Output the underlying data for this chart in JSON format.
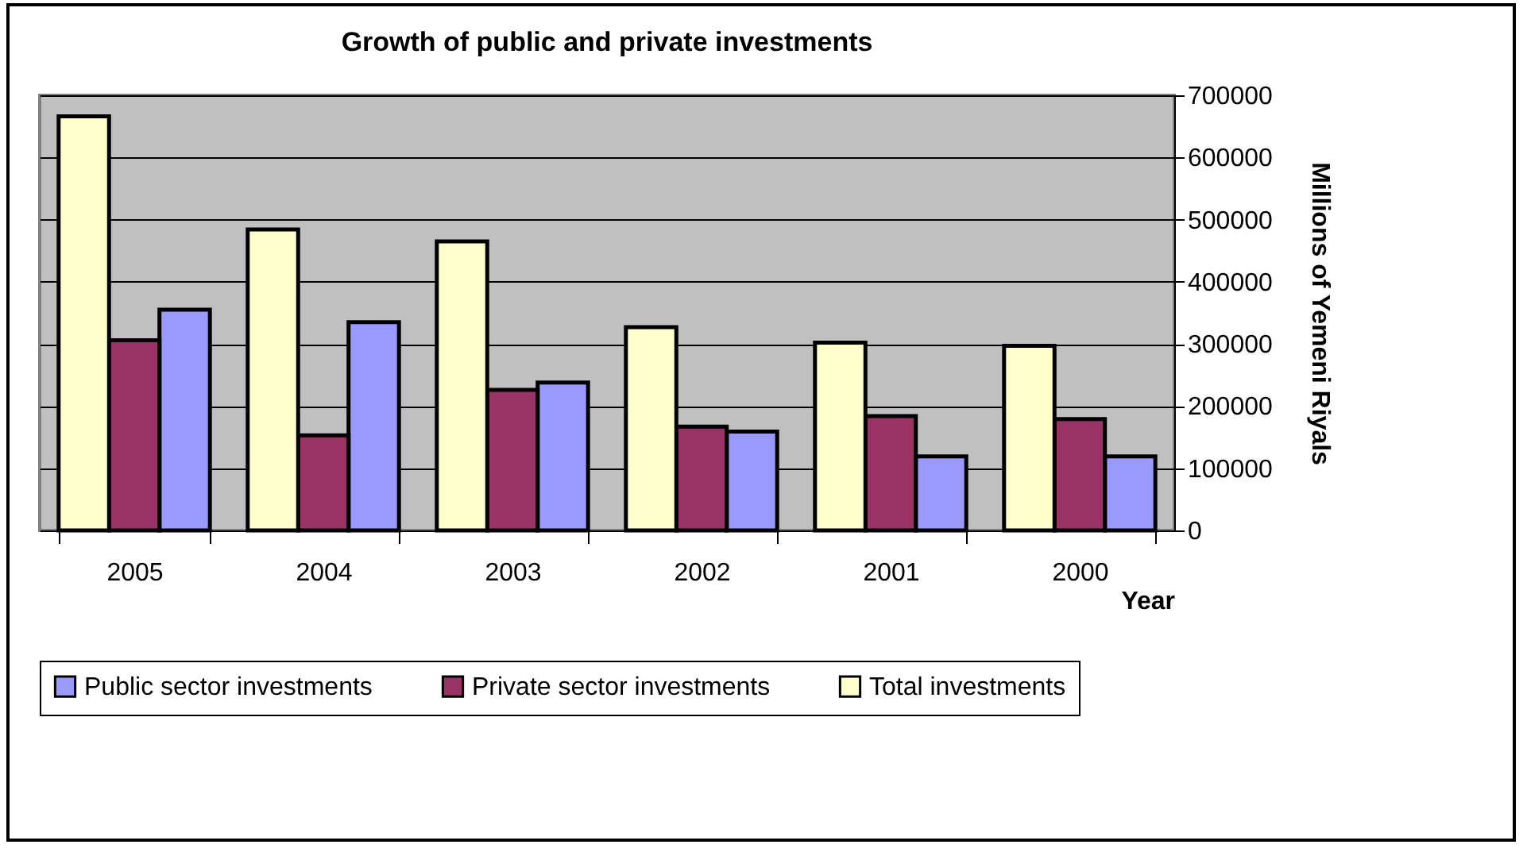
{
  "chart_data": {
    "type": "bar",
    "title": "Growth of public and private investments",
    "xlabel": "Year",
    "ylabel": "Millions of Yemeni Riyals",
    "categories": [
      "2005",
      "2004",
      "2003",
      "2002",
      "2001",
      "2000"
    ],
    "series": [
      {
        "name": "Public sector investments",
        "color": "#9999ff",
        "values": [
          355000,
          335000,
          238000,
          159000,
          119000,
          119000
        ]
      },
      {
        "name": "Private sector investments",
        "color": "#993366",
        "values": [
          306000,
          153000,
          226000,
          167000,
          184000,
          179000
        ]
      },
      {
        "name": "Total investments",
        "color": "#ffffcc",
        "values": [
          666000,
          484000,
          465000,
          327000,
          302000,
          297000
        ]
      }
    ],
    "ylim": [
      0,
      700000
    ],
    "yticks": [
      0,
      100000,
      200000,
      300000,
      400000,
      500000,
      600000,
      700000
    ],
    "grid": "y",
    "legend": "bottom"
  }
}
